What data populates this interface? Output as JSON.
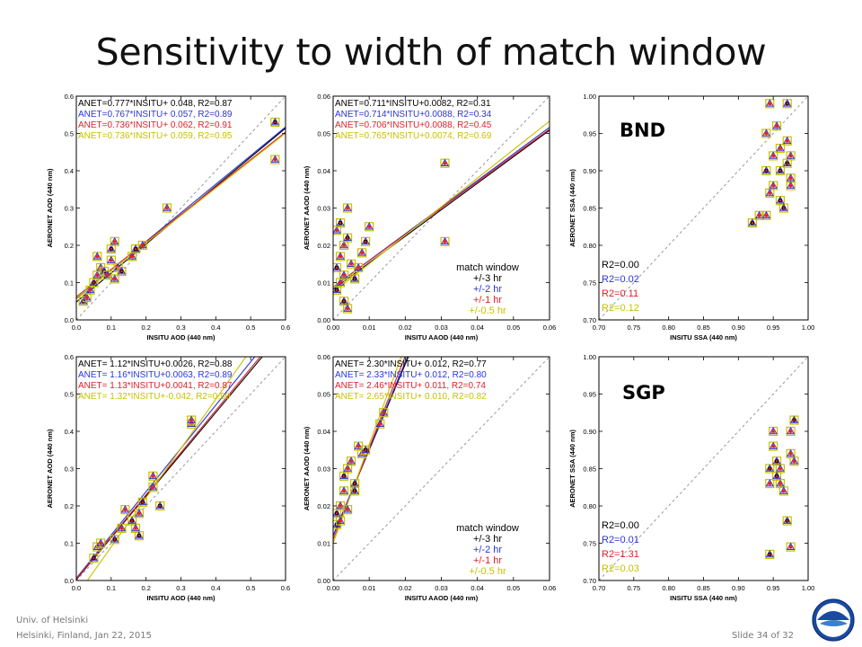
{
  "slide": {
    "title": "Sensitivity to width of match window",
    "footer_left_line1": "Univ. of Helsinki",
    "footer_left_line2": "Helsinki, Finland, Jan 22, 2015",
    "footer_right": "Slide 34 of 32"
  },
  "colors": {
    "series": [
      "#000000",
      "#2b35d6",
      "#e0202a",
      "#c8c000"
    ],
    "one_to_one": "#999999"
  },
  "legend": {
    "title": "match window",
    "items": [
      "+/-3 hr",
      "+/-2 hr",
      "+/-1 hr",
      "+/-0.5 hr"
    ]
  },
  "site_labels": [
    "BND",
    "SGP"
  ],
  "chart_data": [
    {
      "id": "bnd-aod",
      "type": "scatter",
      "xlabel": "INSITU AOD (440 nm)",
      "ylabel": "AERONET AOD (440 nm)",
      "xlim": [
        0,
        0.6
      ],
      "ylim": [
        0,
        0.6
      ],
      "xticks": [
        "0.0",
        "0.1",
        "0.2",
        "0.3",
        "0.4",
        "0.5",
        "0.6"
      ],
      "yticks": [
        "0.0",
        "0.1",
        "0.2",
        "0.3",
        "0.4",
        "0.5",
        "0.6"
      ],
      "fits": [
        {
          "text": "ANET=0.777*INSITU+ 0.048, R2=0.87",
          "slope": 0.777,
          "intercept": 0.048
        },
        {
          "text": "ANET=0.767*INSITU+ 0.057, R2=0.89",
          "slope": 0.767,
          "intercept": 0.057
        },
        {
          "text": "ANET=0.736*INSITU+ 0.062, R2=0.91",
          "slope": 0.736,
          "intercept": 0.062
        },
        {
          "text": "ANET=0.736*INSITU+ 0.059, R2=0.95",
          "slope": 0.736,
          "intercept": 0.059
        }
      ],
      "points": [
        [
          0.02,
          0.05
        ],
        [
          0.03,
          0.06
        ],
        [
          0.04,
          0.08
        ],
        [
          0.05,
          0.1
        ],
        [
          0.06,
          0.12
        ],
        [
          0.07,
          0.14
        ],
        [
          0.08,
          0.13
        ],
        [
          0.09,
          0.12
        ],
        [
          0.1,
          0.16
        ],
        [
          0.1,
          0.19
        ],
        [
          0.11,
          0.21
        ],
        [
          0.12,
          0.14
        ],
        [
          0.13,
          0.13
        ],
        [
          0.11,
          0.11
        ],
        [
          0.16,
          0.17
        ],
        [
          0.17,
          0.19
        ],
        [
          0.19,
          0.2
        ],
        [
          0.26,
          0.3
        ],
        [
          0.57,
          0.53
        ],
        [
          0.57,
          0.43
        ],
        [
          0.06,
          0.17
        ]
      ]
    },
    {
      "id": "bnd-aaod",
      "type": "scatter",
      "xlabel": "INSITU AAOD (440 nm)",
      "ylabel": "AERONET AAOD (440 nm)",
      "xlim": [
        0,
        0.06
      ],
      "ylim": [
        0,
        0.06
      ],
      "xticks": [
        "0.00",
        "0.01",
        "0.02",
        "0.03",
        "0.04",
        "0.05",
        "0.06"
      ],
      "yticks": [
        "0.00",
        "0.01",
        "0.02",
        "0.03",
        "0.04",
        "0.05",
        "0.06"
      ],
      "fits": [
        {
          "text": "ANET=0.711*INSITU+0.0082, R2=0.31",
          "slope": 0.711,
          "intercept": 0.0082
        },
        {
          "text": "ANET=0.714*INSITU+0.0088, R2=0.34",
          "slope": 0.714,
          "intercept": 0.0088
        },
        {
          "text": "ANET=0.706*INSITU+0.0088, R2=0.45",
          "slope": 0.706,
          "intercept": 0.0088
        },
        {
          "text": "ANET=0.765*INSITU+0.0074, R2=0.69",
          "slope": 0.765,
          "intercept": 0.0074
        }
      ],
      "points": [
        [
          0.001,
          0.008
        ],
        [
          0.002,
          0.01
        ],
        [
          0.003,
          0.012
        ],
        [
          0.001,
          0.014
        ],
        [
          0.002,
          0.017
        ],
        [
          0.003,
          0.02
        ],
        [
          0.004,
          0.022
        ],
        [
          0.004,
          0.03
        ],
        [
          0.005,
          0.015
        ],
        [
          0.006,
          0.011
        ],
        [
          0.007,
          0.014
        ],
        [
          0.008,
          0.018
        ],
        [
          0.009,
          0.021
        ],
        [
          0.01,
          0.025
        ],
        [
          0.001,
          0.024
        ],
        [
          0.002,
          0.026
        ],
        [
          0.031,
          0.042
        ],
        [
          0.031,
          0.021
        ],
        [
          0.003,
          0.005
        ],
        [
          0.004,
          0.003
        ]
      ]
    },
    {
      "id": "bnd-ssa",
      "type": "scatter",
      "xlabel": "INSITU SSA (440 nm)",
      "ylabel": "AERONET SSA (440 nm)",
      "xlim": [
        0.7,
        1.0
      ],
      "ylim": [
        0.7,
        1.0
      ],
      "xticks": [
        "0.70",
        "0.75",
        "0.80",
        "0.85",
        "0.90",
        "0.95",
        "1.00"
      ],
      "yticks": [
        "0.70",
        "0.75",
        "0.80",
        "0.85",
        "0.90",
        "0.95",
        "1.00"
      ],
      "fits": [
        {
          "text": "R2=0.00"
        },
        {
          "text": "R2=0.02"
        },
        {
          "text": "R2=0.11"
        },
        {
          "text": "R2=0.12"
        }
      ],
      "points": [
        [
          0.92,
          0.83
        ],
        [
          0.93,
          0.84
        ],
        [
          0.94,
          0.95
        ],
        [
          0.94,
          0.9
        ],
        [
          0.95,
          0.92
        ],
        [
          0.95,
          0.88
        ],
        [
          0.96,
          0.86
        ],
        [
          0.96,
          0.93
        ],
        [
          0.97,
          0.94
        ],
        [
          0.97,
          0.91
        ],
        [
          0.975,
          0.89
        ],
        [
          0.975,
          0.88
        ],
        [
          0.965,
          0.85
        ],
        [
          0.945,
          0.87
        ],
        [
          0.955,
          0.96
        ],
        [
          0.97,
          0.99
        ],
        [
          0.945,
          0.99
        ],
        [
          0.94,
          0.84
        ],
        [
          0.96,
          0.9
        ],
        [
          0.975,
          0.92
        ]
      ]
    },
    {
      "id": "sgp-aod",
      "type": "scatter",
      "xlabel": "INSITU AOD (440 nm)",
      "ylabel": "AERONET AOD (440 nm)",
      "xlim": [
        0,
        0.6
      ],
      "ylim": [
        0,
        0.6
      ],
      "xticks": [
        "0.0",
        "0.1",
        "0.2",
        "0.3",
        "0.4",
        "0.5",
        "0.6"
      ],
      "yticks": [
        "0.0",
        "0.1",
        "0.2",
        "0.3",
        "0.4",
        "0.5",
        "0.6"
      ],
      "fits": [
        {
          "text": "ANET= 1.12*INSITU+0.0026, R2=0.88",
          "slope": 1.12,
          "intercept": 0.0026
        },
        {
          "text": "ANET= 1.16*INSITU+0.0063, R2=0.89",
          "slope": 1.16,
          "intercept": 0.0063
        },
        {
          "text": "ANET= 1.13*INSITU+0.0041, R2=0.87",
          "slope": 1.13,
          "intercept": 0.0041
        },
        {
          "text": "ANET= 1.32*INSITU+-0.042, R2=0.90",
          "slope": 1.32,
          "intercept": -0.042
        }
      ],
      "points": [
        [
          0.05,
          0.06
        ],
        [
          0.06,
          0.09
        ],
        [
          0.07,
          0.1
        ],
        [
          0.11,
          0.11
        ],
        [
          0.13,
          0.14
        ],
        [
          0.14,
          0.19
        ],
        [
          0.16,
          0.16
        ],
        [
          0.17,
          0.14
        ],
        [
          0.18,
          0.18
        ],
        [
          0.19,
          0.21
        ],
        [
          0.22,
          0.25
        ],
        [
          0.22,
          0.28
        ],
        [
          0.24,
          0.2
        ],
        [
          0.33,
          0.42
        ],
        [
          0.33,
          0.43
        ],
        [
          0.18,
          0.12
        ]
      ]
    },
    {
      "id": "sgp-aaod",
      "type": "scatter",
      "xlabel": "INSITU AAOD (440 nm)",
      "ylabel": "AERONET AAOD (440 nm)",
      "xlim": [
        0,
        0.06
      ],
      "ylim": [
        0,
        0.06
      ],
      "xticks": [
        "0.00",
        "0.01",
        "0.02",
        "0.03",
        "0.04",
        "0.05",
        "0.06"
      ],
      "yticks": [
        "0.00",
        "0.01",
        "0.02",
        "0.03",
        "0.04",
        "0.05",
        "0.06"
      ],
      "fits": [
        {
          "text": "ANET= 2.30*INSITU+ 0.012, R2=0.77",
          "slope": 2.3,
          "intercept": 0.012
        },
        {
          "text": "ANET= 2.33*INSITU+ 0.012, R2=0.80",
          "slope": 2.33,
          "intercept": 0.012
        },
        {
          "text": "ANET= 2.46*INSITU+ 0.011, R2=0.74",
          "slope": 2.46,
          "intercept": 0.011
        },
        {
          "text": "ANET= 2.65*INSITU+ 0.010, R2=0.82",
          "slope": 2.65,
          "intercept": 0.01
        }
      ],
      "points": [
        [
          0.001,
          0.018
        ],
        [
          0.002,
          0.02
        ],
        [
          0.003,
          0.024
        ],
        [
          0.003,
          0.028
        ],
        [
          0.004,
          0.03
        ],
        [
          0.005,
          0.032
        ],
        [
          0.006,
          0.026
        ],
        [
          0.007,
          0.036
        ],
        [
          0.008,
          0.034
        ],
        [
          0.009,
          0.035
        ],
        [
          0.013,
          0.042
        ],
        [
          0.014,
          0.045
        ],
        [
          0.001,
          0.015
        ],
        [
          0.002,
          0.016
        ],
        [
          0.004,
          0.019
        ],
        [
          0.006,
          0.024
        ]
      ]
    },
    {
      "id": "sgp-ssa",
      "type": "scatter",
      "xlabel": "INSITU SSA (440 nm)",
      "ylabel": "AERONET SSA (440 nm)",
      "xlim": [
        0.7,
        1.0
      ],
      "ylim": [
        0.7,
        1.0
      ],
      "xticks": [
        "0.70",
        "0.75",
        "0.80",
        "0.85",
        "0.90",
        "0.95",
        "1.00"
      ],
      "yticks": [
        "0.70",
        "0.75",
        "0.80",
        "0.85",
        "0.90",
        "0.95",
        "1.00"
      ],
      "fits": [
        {
          "text": "R2=0.00"
        },
        {
          "text": "R2=0.01"
        },
        {
          "text": "R2=1.31"
        },
        {
          "text": "R2=0.03"
        }
      ],
      "points": [
        [
          0.945,
          0.85
        ],
        [
          0.95,
          0.9
        ],
        [
          0.95,
          0.88
        ],
        [
          0.955,
          0.86
        ],
        [
          0.96,
          0.83
        ],
        [
          0.965,
          0.82
        ],
        [
          0.97,
          0.78
        ],
        [
          0.975,
          0.87
        ],
        [
          0.975,
          0.9
        ],
        [
          0.98,
          0.915
        ],
        [
          0.98,
          0.86
        ],
        [
          0.96,
          0.85
        ],
        [
          0.955,
          0.84
        ],
        [
          0.945,
          0.83
        ],
        [
          0.975,
          0.745
        ],
        [
          0.945,
          0.735
        ]
      ]
    }
  ]
}
